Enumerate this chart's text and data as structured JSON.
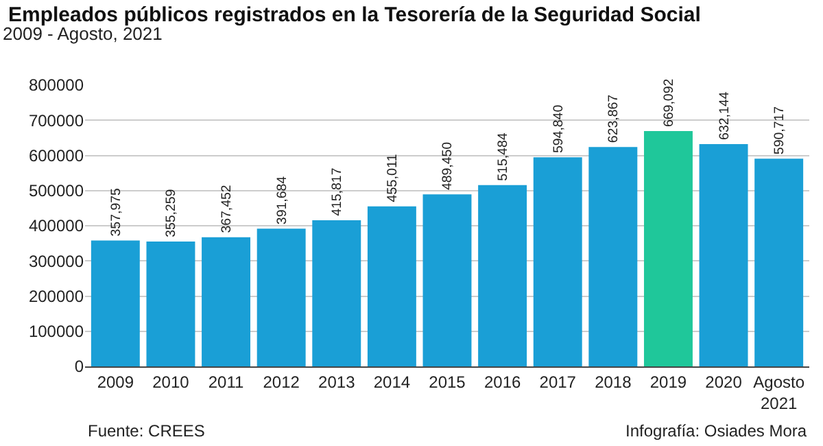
{
  "chart_data": {
    "type": "bar",
    "title": "Empleados públicos registrados en la Tesorería de la Seguridad Social",
    "subtitle": "2009 - Agosto, 2021",
    "categories": [
      "2009",
      "2010",
      "2011",
      "2012",
      "2013",
      "2014",
      "2015",
      "2016",
      "2017",
      "2018",
      "2019",
      "2020",
      "Agosto\n2021"
    ],
    "values": [
      357975,
      355259,
      367452,
      391684,
      415817,
      455011,
      489450,
      515484,
      594840,
      623867,
      669092,
      632144,
      590717
    ],
    "colors": [
      "#1a9fd6",
      "#1a9fd6",
      "#1a9fd6",
      "#1a9fd6",
      "#1a9fd6",
      "#1a9fd6",
      "#1a9fd6",
      "#1a9fd6",
      "#1a9fd6",
      "#1a9fd6",
      "#1fc79a",
      "#1a9fd6",
      "#1a9fd6"
    ],
    "value_labels": [
      "357,975",
      "355,259",
      "367,452",
      "391,684",
      "415,817",
      "455,011",
      "489,450",
      "515,484",
      "594,840",
      "623,867",
      "669,092",
      "632,144",
      "590,717"
    ],
    "ylim": [
      0,
      800000
    ],
    "yticks": [
      0,
      100000,
      200000,
      300000,
      400000,
      500000,
      600000,
      700000,
      800000
    ],
    "grid": "y",
    "legend": false,
    "annotations": [
      "Fuente: CREES",
      "Infografía: Osiades Mora"
    ]
  }
}
